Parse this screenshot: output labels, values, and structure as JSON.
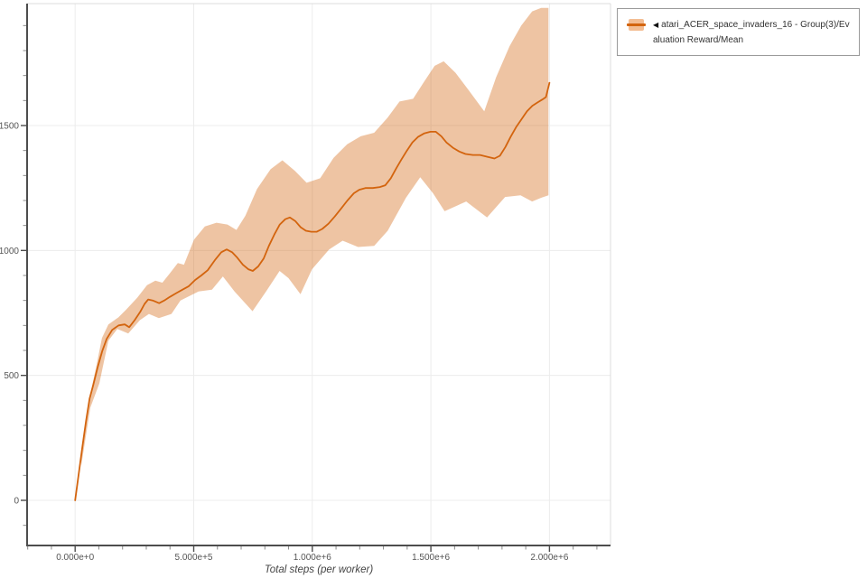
{
  "legend": {
    "marker": "◀",
    "label": "atari_ACER_space_invaders_16 - Group(3)/Evaluation Reward/Mean",
    "series_color": "#d3640e",
    "band_color": "#f3bd93"
  },
  "axes": {
    "x": {
      "title": "Total steps (per worker)",
      "tick_labels": [
        "0.000e+0",
        "5.000e+5",
        "1.000e+6",
        "1.500e+6",
        "2.000e+6"
      ],
      "tick_values": [
        0,
        500000,
        1000000,
        1500000,
        2000000
      ],
      "minor_step": 100000,
      "minor_from": -200000,
      "minor_to": 2250000
    },
    "y": {
      "tick_labels": [
        "0",
        "500",
        "1000",
        "1500"
      ],
      "tick_values": [
        0,
        500,
        1000,
        1500
      ],
      "minor_step": 100,
      "minor_from": -100,
      "minor_to": 1900
    }
  },
  "chart_data": {
    "type": "line",
    "title": "",
    "xlabel": "Total steps (per worker)",
    "ylabel": "",
    "x_range": [
      0,
      2000000
    ],
    "y_range": [
      0,
      1975
    ],
    "grid": true,
    "legend_position": "top-right-outside",
    "series": [
      {
        "name": "atari_ACER_space_invaders_16 - Group(3)/Evaluation Reward/Mean",
        "color": "#d3640e",
        "x": [
          0,
          15000,
          30000,
          46000,
          61000,
          76000,
          95000,
          114000,
          133000,
          156000,
          183000,
          209000,
          228000,
          251000,
          274000,
          293000,
          308000,
          327000,
          354000,
          376000,
          399000,
          426000,
          452000,
          479000,
          506000,
          532000,
          559000,
          589000,
          616000,
          639000,
          662000,
          684000,
          707000,
          730000,
          749000,
          772000,
          795000,
          817000,
          840000,
          863000,
          886000,
          905000,
          928000,
          951000,
          973000,
          996000,
          1019000,
          1042000,
          1068000,
          1095000,
          1122000,
          1148000,
          1175000,
          1198000,
          1224000,
          1255000,
          1285000,
          1308000,
          1331000,
          1354000,
          1376000,
          1399000,
          1422000,
          1445000,
          1471000,
          1498000,
          1521000,
          1544000,
          1566000,
          1593000,
          1620000,
          1646000,
          1677000,
          1707000,
          1738000,
          1768000,
          1791000,
          1814000,
          1836000,
          1859000,
          1882000,
          1905000,
          1928000,
          1951000,
          1970000,
          1985000,
          2000000
        ],
        "y": [
          0,
          104,
          211,
          318,
          407,
          461,
          532,
          596,
          646,
          682,
          700,
          704,
          693,
          721,
          754,
          786,
          804,
          800,
          789,
          800,
          814,
          829,
          843,
          857,
          882,
          900,
          921,
          961,
          993,
          1004,
          993,
          971,
          943,
          925,
          918,
          936,
          968,
          1018,
          1064,
          1104,
          1125,
          1132,
          1118,
          1093,
          1079,
          1075,
          1075,
          1086,
          1107,
          1136,
          1168,
          1200,
          1229,
          1243,
          1250,
          1250,
          1254,
          1261,
          1289,
          1329,
          1364,
          1400,
          1432,
          1454,
          1468,
          1475,
          1475,
          1457,
          1432,
          1411,
          1396,
          1386,
          1382,
          1382,
          1375,
          1368,
          1379,
          1414,
          1454,
          1493,
          1525,
          1557,
          1579,
          1593,
          1604,
          1614,
          1671
        ]
      }
    ],
    "band": {
      "name": "std band",
      "upper_x": [
        26000,
        64000,
        90000,
        113000,
        140000,
        182000,
        216000,
        262000,
        303000,
        338000,
        368000,
        398000,
        433000,
        459000,
        501000,
        547000,
        596000,
        642000,
        680000,
        718000,
        767000,
        824000,
        874000,
        927000,
        976000,
        1033000,
        1090000,
        1147000,
        1204000,
        1261000,
        1318000,
        1368000,
        1425000,
        1471000,
        1516000,
        1554000,
        1604000,
        1661000,
        1725000,
        1775000,
        1832000,
        1881000,
        1927000,
        1965000,
        1996000
      ],
      "upper_y": [
        175,
        425,
        539,
        650,
        704,
        732,
        764,
        811,
        861,
        879,
        871,
        907,
        950,
        943,
        1043,
        1096,
        1111,
        1104,
        1082,
        1139,
        1246,
        1325,
        1361,
        1318,
        1271,
        1289,
        1371,
        1425,
        1457,
        1471,
        1532,
        1596,
        1607,
        1675,
        1739,
        1757,
        1711,
        1639,
        1557,
        1693,
        1818,
        1900,
        1957,
        1971,
        1971
      ],
      "lower_x": [
        26000,
        64000,
        102000,
        140000,
        178000,
        224000,
        273000,
        311000,
        353000,
        406000,
        444000,
        520000,
        577000,
        623000,
        672000,
        748000,
        805000,
        862000,
        900000,
        950000,
        999000,
        1071000,
        1128000,
        1193000,
        1261000,
        1318000,
        1395000,
        1455000,
        1509000,
        1558000,
        1649000,
        1737000,
        1813000,
        1878000,
        1927000,
        1965000,
        1996000
      ],
      "lower_y": [
        140,
        371,
        468,
        639,
        686,
        668,
        721,
        746,
        729,
        746,
        800,
        836,
        843,
        896,
        836,
        757,
        836,
        918,
        889,
        825,
        925,
        1004,
        1039,
        1014,
        1018,
        1079,
        1211,
        1293,
        1229,
        1157,
        1196,
        1132,
        1214,
        1221,
        1196,
        1211,
        1221
      ]
    }
  }
}
